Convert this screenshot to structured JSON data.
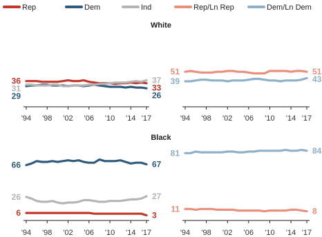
{
  "colors": {
    "rep": "#c2372a",
    "dem": "#2f5b7c",
    "ind": "#b5b5b5",
    "rep_lean": "#e8907c",
    "dem_lean": "#8fb0c9",
    "axis": "#222222"
  },
  "legend": [
    {
      "key": "rep",
      "label": "Rep"
    },
    {
      "key": "dem",
      "label": "Dem"
    },
    {
      "key": "ind",
      "label": "Ind"
    },
    {
      "key": "rep_lean",
      "label": "Rep/Ln Rep"
    },
    {
      "key": "dem_lean",
      "label": "Dem/Ln Dem"
    }
  ],
  "x_ticks": [
    "'94",
    "'98",
    "'02",
    "'06",
    "'10",
    "'14",
    "'17"
  ],
  "section_titles": [
    "White",
    "Black"
  ],
  "chart_data": [
    {
      "type": "line",
      "title": "White",
      "x": [
        1994,
        1995,
        1996,
        1997,
        1998,
        1999,
        2000,
        2001,
        2002,
        2003,
        2004,
        2005,
        2006,
        2007,
        2008,
        2009,
        2010,
        2011,
        2012,
        2013,
        2014,
        2015,
        2016,
        2017
      ],
      "ylim": [
        0,
        60
      ],
      "series": [
        {
          "name": "Rep",
          "key": "rep",
          "values": [
            36,
            36,
            36,
            35,
            35,
            35,
            35,
            36,
            37,
            36,
            36,
            37,
            35,
            34,
            33,
            33,
            33,
            32,
            33,
            33,
            34,
            33,
            34,
            33
          ],
          "start_label": "36",
          "end_label": "33"
        },
        {
          "name": "Dem",
          "key": "dem",
          "values": [
            29,
            30,
            30,
            31,
            31,
            30,
            30,
            30,
            29,
            30,
            30,
            29,
            30,
            31,
            30,
            29,
            28,
            28,
            28,
            27,
            28,
            27,
            27,
            26
          ],
          "start_label": "29",
          "end_label": "26"
        },
        {
          "name": "Ind",
          "key": "ind",
          "values": [
            31,
            31,
            30,
            30,
            30,
            31,
            31,
            29,
            29,
            30,
            30,
            30,
            31,
            31,
            32,
            32,
            33,
            34,
            34,
            34,
            35,
            36,
            35,
            37
          ],
          "start_label": "31",
          "end_label": "37"
        }
      ]
    },
    {
      "type": "line",
      "title": "White",
      "x": [
        1994,
        1995,
        1996,
        1997,
        1998,
        1999,
        2000,
        2001,
        2002,
        2003,
        2004,
        2005,
        2006,
        2007,
        2008,
        2009,
        2010,
        2011,
        2012,
        2013,
        2014,
        2015,
        2016,
        2017
      ],
      "ylim": [
        0,
        60
      ],
      "series": [
        {
          "name": "Rep/Ln Rep",
          "key": "rep_lean",
          "values": [
            51,
            52,
            51,
            50,
            50,
            50,
            51,
            51,
            52,
            52,
            51,
            51,
            50,
            49,
            49,
            49,
            52,
            52,
            52,
            52,
            51,
            52,
            52,
            51
          ],
          "start_label": "51",
          "end_label": "51"
        },
        {
          "name": "Dem/Ln Dem",
          "key": "dem_lean",
          "values": [
            39,
            39,
            40,
            41,
            41,
            40,
            40,
            40,
            39,
            40,
            40,
            40,
            41,
            42,
            42,
            41,
            40,
            40,
            39,
            40,
            40,
            40,
            41,
            43
          ],
          "start_label": "39",
          "end_label": "43"
        }
      ]
    },
    {
      "type": "line",
      "title": "Black",
      "x": [
        1994,
        1995,
        1996,
        1997,
        1998,
        1999,
        2000,
        2001,
        2002,
        2003,
        2004,
        2005,
        2006,
        2007,
        2008,
        2009,
        2010,
        2011,
        2012,
        2013,
        2014,
        2015,
        2016,
        2017
      ],
      "ylim": [
        0,
        90
      ],
      "series": [
        {
          "name": "Rep",
          "key": "rep",
          "values": [
            6,
            6,
            6,
            6,
            6,
            6,
            6,
            6,
            6,
            6,
            6,
            6,
            6,
            5,
            5,
            5,
            5,
            5,
            5,
            5,
            5,
            5,
            5,
            3
          ],
          "start_label": "6",
          "end_label": "3"
        },
        {
          "name": "Dem",
          "key": "dem",
          "values": [
            66,
            68,
            71,
            70,
            70,
            71,
            70,
            71,
            72,
            71,
            72,
            70,
            69,
            69,
            73,
            71,
            71,
            71,
            72,
            70,
            68,
            69,
            69,
            67
          ],
          "start_label": "66",
          "end_label": "67"
        },
        {
          "name": "Ind",
          "key": "ind",
          "values": [
            26,
            24,
            21,
            20,
            20,
            21,
            19,
            18,
            19,
            19,
            20,
            22,
            22,
            21,
            20,
            20,
            21,
            21,
            21,
            22,
            23,
            23,
            24,
            27
          ],
          "start_label": "26",
          "end_label": "27"
        }
      ]
    },
    {
      "type": "line",
      "title": "Black",
      "x": [
        1994,
        1995,
        1996,
        1997,
        1998,
        1999,
        2000,
        2001,
        2002,
        2003,
        2004,
        2005,
        2006,
        2007,
        2008,
        2009,
        2010,
        2011,
        2012,
        2013,
        2014,
        2015,
        2016,
        2017
      ],
      "ylim": [
        0,
        90
      ],
      "series": [
        {
          "name": "Rep/Ln Rep",
          "key": "rep_lean",
          "values": [
            11,
            11,
            10,
            11,
            11,
            11,
            10,
            10,
            10,
            10,
            9,
            9,
            9,
            9,
            9,
            8,
            9,
            9,
            9,
            9,
            10,
            10,
            9,
            8
          ],
          "start_label": "11",
          "end_label": "8"
        },
        {
          "name": "Dem/Ln Dem",
          "key": "dem_lean",
          "values": [
            81,
            81,
            83,
            82,
            82,
            82,
            82,
            82,
            83,
            83,
            82,
            82,
            83,
            83,
            84,
            84,
            84,
            84,
            84,
            85,
            84,
            84,
            85,
            84
          ],
          "start_label": "81",
          "end_label": "84"
        }
      ]
    }
  ]
}
